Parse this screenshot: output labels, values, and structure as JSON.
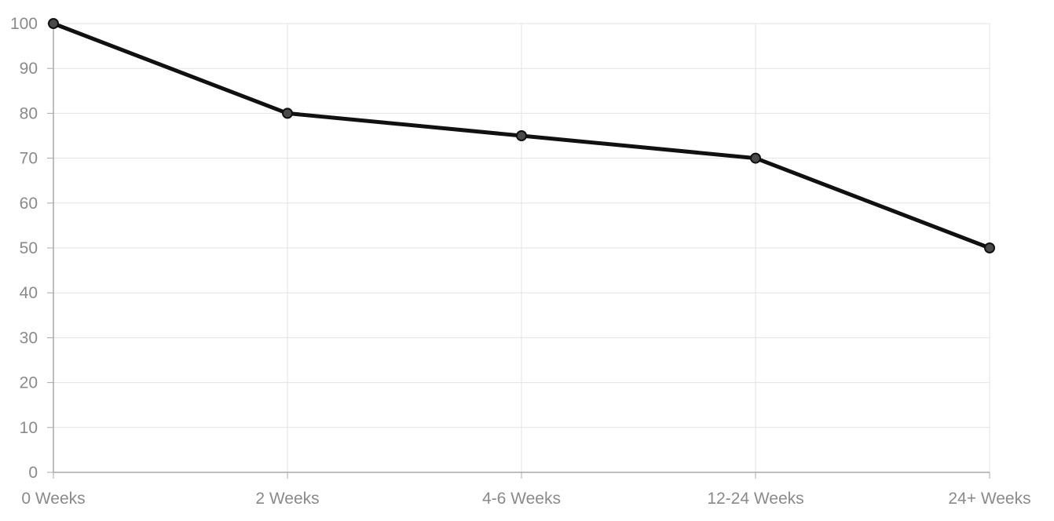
{
  "chart_data": {
    "type": "line",
    "title": "",
    "xlabel": "",
    "ylabel": "",
    "categories": [
      "0 Weeks",
      "2 Weeks",
      "4-6 Weeks",
      "12-24 Weeks",
      "24+ Weeks"
    ],
    "series": [
      {
        "values": [
          100,
          80,
          75,
          70,
          50
        ],
        "color": "#111111",
        "point_color": "#4a4a4a"
      }
    ],
    "ylim": [
      0,
      100
    ],
    "yticks": [
      0,
      10,
      20,
      30,
      40,
      50,
      60,
      70,
      80,
      90,
      100
    ],
    "grid": true,
    "legend": "none"
  }
}
